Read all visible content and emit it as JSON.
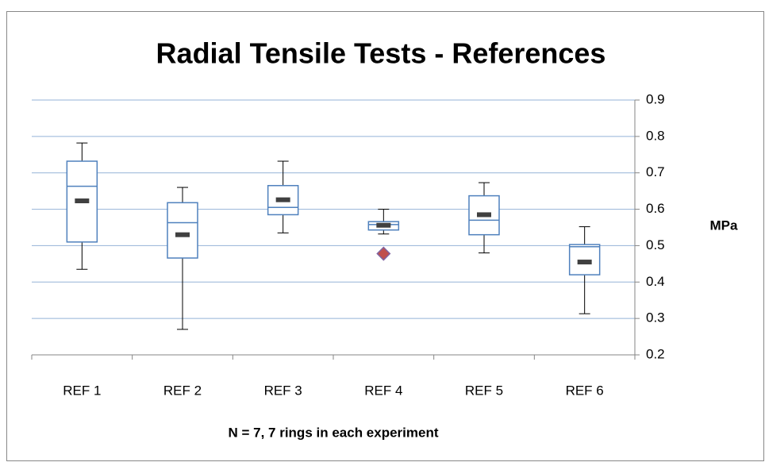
{
  "chart_data": {
    "type": "box",
    "title": "Radial Tensile Tests - References",
    "y_label": "MPa",
    "x_label": "N = 7, 7 rings in each experiment",
    "categories": [
      "REF 1",
      "REF 2",
      "REF 3",
      "REF 4",
      "REF 5",
      "REF 6"
    ],
    "boxes": [
      {
        "min": 0.435,
        "q1": 0.51,
        "median": 0.663,
        "q3": 0.732,
        "max": 0.782,
        "mean": 0.623,
        "outliers": []
      },
      {
        "min": 0.27,
        "q1": 0.466,
        "median": 0.563,
        "q3": 0.618,
        "max": 0.66,
        "mean": 0.53,
        "outliers": []
      },
      {
        "min": 0.535,
        "q1": 0.585,
        "median": 0.605,
        "q3": 0.665,
        "max": 0.732,
        "mean": 0.626,
        "outliers": []
      },
      {
        "min": 0.532,
        "q1": 0.543,
        "median": 0.558,
        "q3": 0.566,
        "max": 0.6,
        "mean": 0.556,
        "outliers": [
          0.478
        ]
      },
      {
        "min": 0.48,
        "q1": 0.53,
        "median": 0.57,
        "q3": 0.637,
        "max": 0.673,
        "mean": 0.585,
        "outliers": []
      },
      {
        "min": 0.313,
        "q1": 0.42,
        "median": 0.497,
        "q3": 0.503,
        "max": 0.552,
        "mean": 0.455,
        "outliers": []
      }
    ],
    "box_color": "#4f81bd",
    "whisker_color": "#000000",
    "mean_color": "#404040",
    "outlier_color": "#c0504d",
    "ylim": [
      0.2,
      0.9
    ],
    "yticks": [
      0.2,
      0.3,
      0.4,
      0.5,
      0.6,
      0.7,
      0.8,
      0.9
    ],
    "y_axis_side": "right",
    "grid": true
  }
}
